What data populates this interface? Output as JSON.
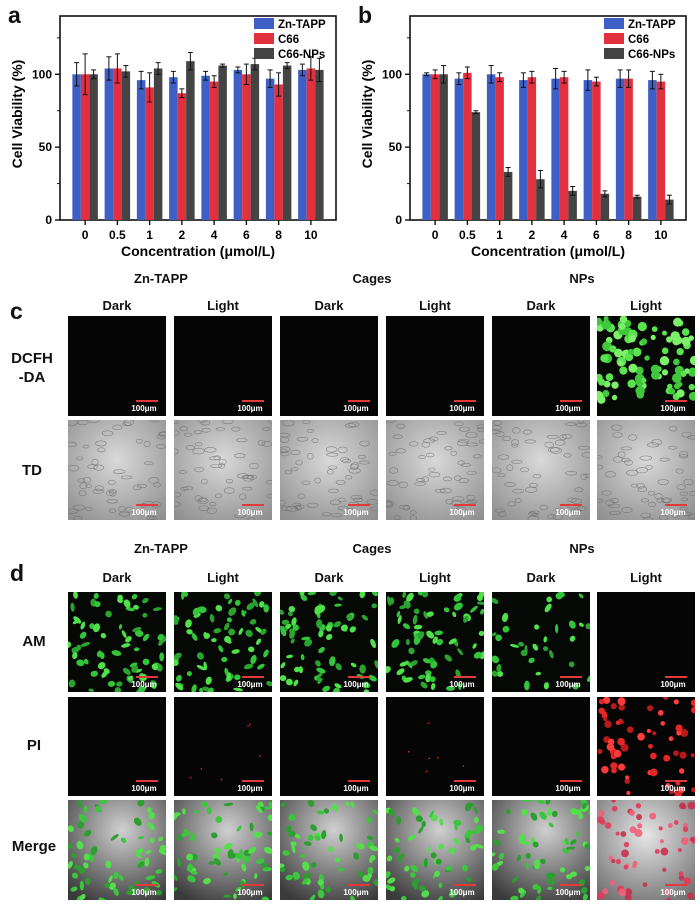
{
  "chart_data": [
    {
      "type": "bar",
      "panel": "a",
      "categories": [
        "0",
        "0.5",
        "1",
        "2",
        "4",
        "6",
        "8",
        "10"
      ],
      "xlabel": "Concentration (μmol/L)",
      "ylabel": "Cell Viability (%)",
      "ylim": [
        0,
        140
      ],
      "yticks": [
        0,
        50,
        100
      ],
      "legend_position": "top-right",
      "series": [
        {
          "name": "Zn-TAPP",
          "color": "#3d5fc6",
          "values": [
            100,
            104,
            96,
            98,
            99,
            103,
            97,
            103
          ],
          "errors": [
            8,
            8,
            6,
            4,
            3,
            2,
            6,
            4
          ]
        },
        {
          "name": "C66",
          "color": "#e3303f",
          "values": [
            100,
            104,
            91,
            87,
            95,
            100,
            93,
            104
          ],
          "errors": [
            14,
            10,
            10,
            3,
            4,
            7,
            8,
            8
          ]
        },
        {
          "name": "C66-NPs",
          "color": "#444444",
          "values": [
            100,
            102,
            104,
            109,
            106,
            107,
            106,
            103
          ],
          "errors": [
            3,
            4,
            4,
            6,
            1,
            4,
            2,
            8
          ]
        }
      ]
    },
    {
      "type": "bar",
      "panel": "b",
      "categories": [
        "0",
        "0.5",
        "1",
        "2",
        "4",
        "6",
        "8",
        "10"
      ],
      "xlabel": "Concentration (μmol/L)",
      "ylabel": "Cell Viability (%)",
      "ylim": [
        0,
        140
      ],
      "yticks": [
        0,
        50,
        100
      ],
      "legend_position": "top-right",
      "series": [
        {
          "name": "Zn-TAPP",
          "color": "#3d5fc6",
          "values": [
            100,
            97,
            100,
            96,
            97,
            96,
            97,
            96
          ],
          "errors": [
            1,
            4,
            6,
            5,
            7,
            7,
            6,
            6
          ]
        },
        {
          "name": "C66",
          "color": "#e3303f",
          "values": [
            100,
            101,
            98,
            98,
            98,
            95,
            97,
            95
          ],
          "errors": [
            3,
            4,
            3,
            4,
            4,
            3,
            6,
            5
          ]
        },
        {
          "name": "C66-NPs",
          "color": "#444444",
          "values": [
            100,
            74,
            33,
            28,
            20,
            18,
            16,
            14
          ],
          "errors": [
            6,
            1,
            3,
            6,
            3,
            2,
            1,
            3
          ]
        }
      ]
    }
  ],
  "panels": {
    "a": "a",
    "b": "b",
    "c": "c",
    "d": "d"
  },
  "group_titles": [
    "Zn-TAPP",
    "Cages",
    "NPs"
  ],
  "column_titles": [
    "Dark",
    "Light",
    "Dark",
    "Light",
    "Dark",
    "Light"
  ],
  "panel_c": {
    "rows": [
      {
        "label_line1": "DCFH",
        "label_line2": "-DA"
      },
      {
        "label_line1": "TD",
        "label_line2": ""
      }
    ]
  },
  "panel_d": {
    "rows": [
      {
        "label": "AM"
      },
      {
        "label": "PI"
      },
      {
        "label": "Merge"
      }
    ]
  },
  "scale_bar_text": "100μm"
}
